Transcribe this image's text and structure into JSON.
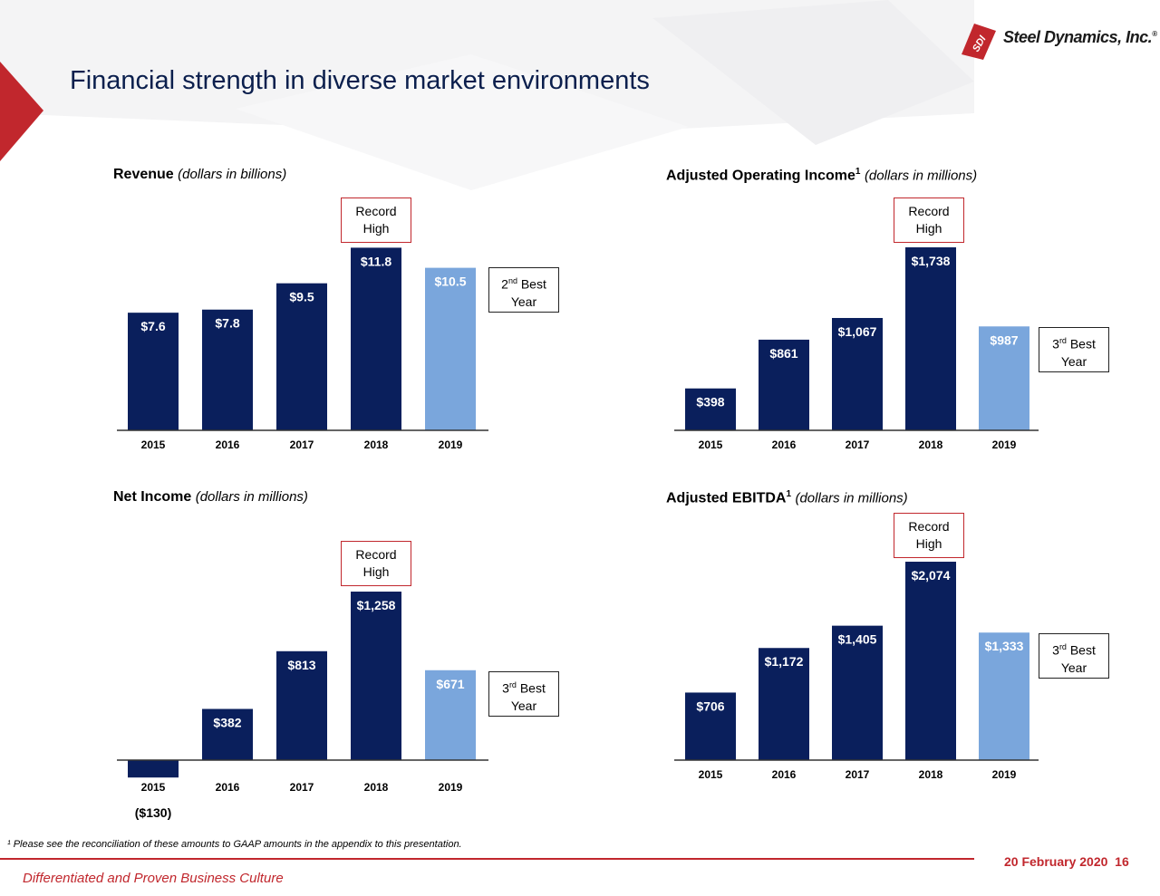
{
  "header": {
    "title": "Financial strength in diverse market environments",
    "logo_text": "Steel Dynamics, Inc.",
    "logo_badge": "SDI",
    "logo_reg": "®"
  },
  "colors": {
    "navy": "#0a1f5c",
    "light_blue": "#7aa6dc",
    "record_border": "#c1272d",
    "accent_red": "#c1272d"
  },
  "chart_data": [
    {
      "type": "bar",
      "title": "Revenue",
      "unit_note": "(dollars in billions)",
      "categories": [
        "2015",
        "2016",
        "2017",
        "2018",
        "2019"
      ],
      "values": [
        7.6,
        7.8,
        9.5,
        11.8,
        10.5
      ],
      "labels": [
        "$7.6",
        "$7.8",
        "$9.5",
        "$11.8",
        "$10.5"
      ],
      "highlight_index": 4,
      "callouts": [
        {
          "text": "Record\nHigh",
          "style": "record",
          "index": 3
        },
        {
          "text_main": "2",
          "text_sup": "nd",
          "text_rest": " Best\nYear",
          "style": "best",
          "index": 4
        }
      ]
    },
    {
      "type": "bar",
      "title": "Adjusted Operating Income",
      "title_sup": "1",
      "unit_note": "(dollars in millions)",
      "categories": [
        "2015",
        "2016",
        "2017",
        "2018",
        "2019"
      ],
      "values": [
        398,
        861,
        1067,
        1738,
        987
      ],
      "labels": [
        "$398",
        "$861",
        "$1,067",
        "$1,738",
        "$987"
      ],
      "highlight_index": 4,
      "callouts": [
        {
          "text": "Record\nHigh",
          "style": "record",
          "index": 3
        },
        {
          "text_main": "3",
          "text_sup": "rd",
          "text_rest": " Best\nYear",
          "style": "best",
          "index": 4
        }
      ]
    },
    {
      "type": "bar",
      "title": "Net Income",
      "unit_note": "(dollars in millions)",
      "categories": [
        "2015",
        "2016",
        "2017",
        "2018",
        "2019"
      ],
      "values": [
        -130,
        382,
        813,
        1258,
        671
      ],
      "labels": [
        "($130)",
        "$382",
        "$813",
        "$1,258",
        "$671"
      ],
      "highlight_index": 4,
      "callouts": [
        {
          "text": "Record\nHigh",
          "style": "record",
          "index": 3
        },
        {
          "text_main": "3",
          "text_sup": "rd",
          "text_rest": " Best\nYear",
          "style": "best",
          "index": 4
        }
      ]
    },
    {
      "type": "bar",
      "title": "Adjusted EBITDA",
      "title_sup": "1",
      "unit_note": "(dollars in millions)",
      "categories": [
        "2015",
        "2016",
        "2017",
        "2018",
        "2019"
      ],
      "values": [
        706,
        1172,
        1405,
        2074,
        1333
      ],
      "labels": [
        "$706",
        "$1,172",
        "$1,405",
        "$2,074",
        "$1,333"
      ],
      "highlight_index": 4,
      "callouts": [
        {
          "text": "Record\nHigh",
          "style": "record",
          "index": 3
        },
        {
          "text_main": "3",
          "text_sup": "rd",
          "text_rest": " Best\nYear",
          "style": "best",
          "index": 4
        }
      ]
    }
  ],
  "footnote": "¹ Please see the reconciliation of these amounts to GAAP amounts in the appendix to this presentation.",
  "footer": {
    "date_page": "20 February 2020  16",
    "tagline": "Differentiated and Proven Business Culture"
  }
}
